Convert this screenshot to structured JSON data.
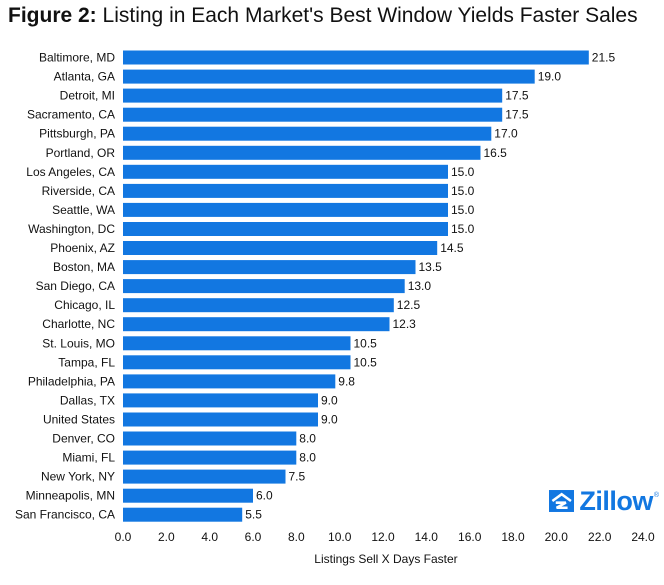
{
  "title": {
    "prefix": "Figure 2:",
    "text": "Listing in Each Market's Best Window Yields Faster Sales"
  },
  "logo": {
    "text": "Zillow",
    "mark": "®"
  },
  "colors": {
    "bar": "#1277e1",
    "text": "#111111",
    "logo": "#1277e1"
  },
  "chart_data": {
    "type": "bar",
    "orientation": "horizontal",
    "categories": [
      "Baltimore, MD",
      "Atlanta, GA",
      "Detroit, MI",
      "Sacramento, CA",
      "Pittsburgh, PA",
      "Portland, OR",
      "Los Angeles, CA",
      "Riverside, CA",
      "Seattle, WA",
      "Washington, DC",
      "Phoenix, AZ",
      "Boston, MA",
      "San Diego, CA",
      "Chicago, IL",
      "Charlotte, NC",
      "St. Louis, MO",
      "Tampa, FL",
      "Philadelphia, PA",
      "Dallas, TX",
      "United States",
      "Denver, CO",
      "Miami, FL",
      "New York, NY",
      "Minneapolis, MN",
      "San Francisco, CA"
    ],
    "values": [
      21.5,
      19.0,
      17.5,
      17.5,
      17.0,
      16.5,
      15.0,
      15.0,
      15.0,
      15.0,
      14.5,
      13.5,
      13.0,
      12.5,
      12.3,
      10.5,
      10.5,
      9.8,
      9.0,
      9.0,
      8.0,
      8.0,
      7.5,
      6.0,
      5.5
    ],
    "value_labels": [
      "21.5",
      "19.0",
      "17.5",
      "17.5",
      "17.0",
      "16.5",
      "15.0",
      "15.0",
      "15.0",
      "15.0",
      "14.5",
      "13.5",
      "13.0",
      "12.5",
      "12.3",
      "10.5",
      "10.5",
      "9.8",
      "9.0",
      "9.0",
      "8.0",
      "8.0",
      "7.5",
      "6.0",
      "5.5"
    ],
    "xlabel": "Listings Sell X Days Faster",
    "ylabel": "",
    "xlim": [
      0,
      24
    ],
    "xticks": [
      "0.0",
      "2.0",
      "4.0",
      "6.0",
      "8.0",
      "10.0",
      "12.0",
      "14.0",
      "16.0",
      "18.0",
      "20.0",
      "22.0",
      "24.0"
    ],
    "grid": false,
    "legend": "none"
  }
}
